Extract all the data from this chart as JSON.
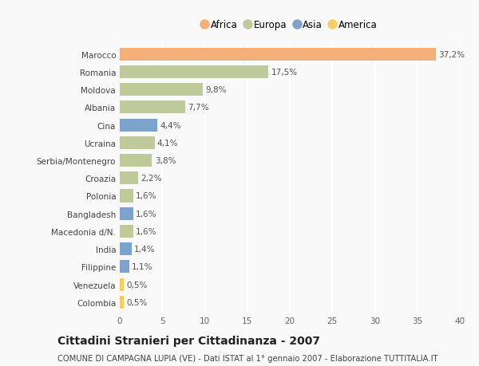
{
  "countries": [
    "Marocco",
    "Romania",
    "Moldova",
    "Albania",
    "Cina",
    "Ucraina",
    "Serbia/Montenegro",
    "Croazia",
    "Polonia",
    "Bangladesh",
    "Macedonia d/N.",
    "India",
    "Filippine",
    "Venezuela",
    "Colombia"
  ],
  "values": [
    37.2,
    17.5,
    9.8,
    7.7,
    4.4,
    4.1,
    3.8,
    2.2,
    1.6,
    1.6,
    1.6,
    1.4,
    1.1,
    0.5,
    0.5
  ],
  "labels": [
    "37,2%",
    "17,5%",
    "9,8%",
    "7,7%",
    "4,4%",
    "4,1%",
    "3,8%",
    "2,2%",
    "1,6%",
    "1,6%",
    "1,6%",
    "1,4%",
    "1,1%",
    "0,5%",
    "0,5%"
  ],
  "continents": [
    "Africa",
    "Europa",
    "Europa",
    "Europa",
    "Asia",
    "Europa",
    "Europa",
    "Europa",
    "Europa",
    "Asia",
    "Europa",
    "Asia",
    "Asia",
    "America",
    "America"
  ],
  "continent_colors": {
    "Africa": "#F5B07A",
    "Europa": "#BFCA9A",
    "Asia": "#7BA3CC",
    "America": "#F5D060"
  },
  "legend_order": [
    "Africa",
    "Europa",
    "Asia",
    "America"
  ],
  "xlim": [
    0,
    40
  ],
  "xticks": [
    0,
    5,
    10,
    15,
    20,
    25,
    30,
    35,
    40
  ],
  "title": "Cittadini Stranieri per Cittadinanza - 2007",
  "subtitle": "COMUNE DI CAMPAGNA LUPIA (VE) - Dati ISTAT al 1° gennaio 2007 - Elaborazione TUTTITALIA.IT",
  "background_color": "#f9f9f9",
  "bar_height": 0.72,
  "label_fontsize": 7.5,
  "tick_fontsize": 7.5,
  "title_fontsize": 10,
  "subtitle_fontsize": 7.2
}
